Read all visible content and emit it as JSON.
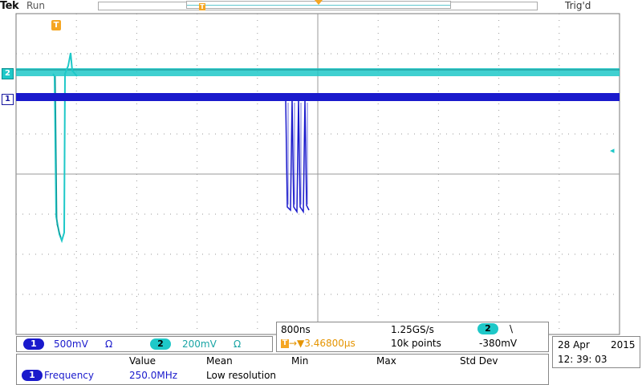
{
  "header": {
    "brand": "Tek",
    "run_state": "Run",
    "trigger_state": "Trig'd",
    "trigger_marker_small": "T"
  },
  "markers": {
    "ch2": "2",
    "ch1": "1",
    "trigger_t": "T",
    "trigger_level_glyph": "◂"
  },
  "channels": {
    "ch1": {
      "num": "1",
      "scale": "500mV",
      "coupling": "Ω",
      "color": "#1a1acc"
    },
    "ch2": {
      "num": "2",
      "scale": "200mV",
      "coupling": "Ω",
      "color": "#1ec8c8"
    }
  },
  "horizontal": {
    "time_div": "800ns",
    "sample_rate": "1.25GS/s",
    "trig_ch": "2",
    "trig_slope": "\\",
    "trigger_marker": "T",
    "position": "→▼3.46800µs",
    "record_length": "10k points",
    "trigger_level": "-380mV"
  },
  "datetime": {
    "date_day": "28 Apr",
    "date_year": "2015",
    "time": "12: 39: 03"
  },
  "measurements": {
    "headers": {
      "value": "Value",
      "mean": "Mean",
      "min": "Min",
      "max": "Max",
      "std": "Std Dev"
    },
    "row1": {
      "ch": "1",
      "name": "Frequency",
      "value": "250.0MHz",
      "mean": "Low resolution"
    }
  },
  "colors": {
    "ch1": "#1a1acc",
    "ch2": "#1ec8c8",
    "trigger": "#f5a623",
    "grid": "#888888"
  }
}
